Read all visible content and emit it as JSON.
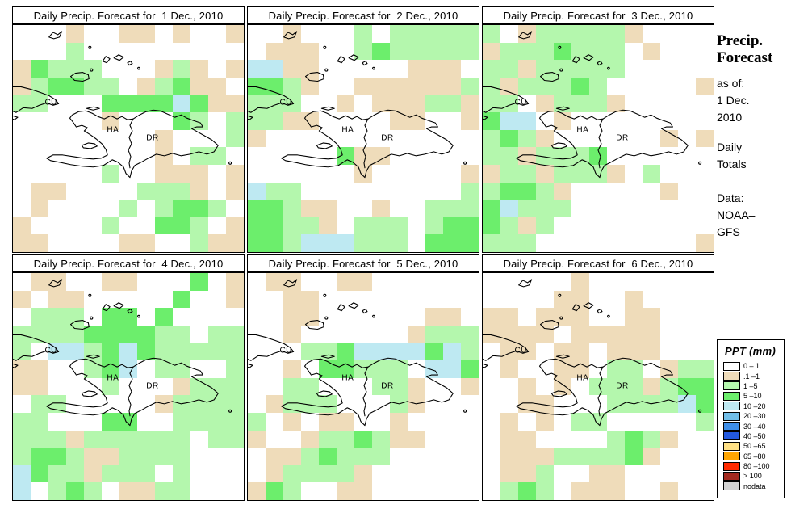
{
  "panels": [
    {
      "title": "Daily Precip. Forecast for  1 Dec., 2010",
      "grid": [
        "...t..tt.t..t",
        "...g.........",
        "tGggg...tgt.t",
        "tgGGgg.tgGtt.",
        "gg...GGGGcGtt",
        ".....t...Gg.g",
        "........t...g",
        "........t.gg.",
        ".....g..ttt.t",
        ".tt....gggt.t",
        ".t....g.gGGg.",
        "t....g..GGg.t",
        "tt....tt..gtt"
      ]
    },
    {
      "title": "Daily Precip. Forecast for  2 Dec., 2010",
      "grid": [
        "..t...g.ggggg",
        ".ttt..gGggggg",
        "cctt.....ttt.",
        "GGgt..ttttttg",
        "ggg..t.tttggt",
        "ggtt....tt..t",
        "t............",
        ".....Gtt.....",
        "......t.....t",
        "cgg.........g",
        "GGgtt..t..ggg",
        "GGggt.ggg.gGG",
        "GGgcccggg.GGG"
      ]
    },
    {
      "title": "Daily Precip. Forecast for  3 Dec., 2010",
      "grid": [
        "g.tgggggt....",
        "tgggGggg.t...",
        "ggtggggg.....",
        "gtgggGg.....t",
        "gg.tgggt.....",
        "Gcc.t........",
        "gGgt......t.t",
        "ggtgggG......",
        "tggtgggt.g...",
        "gGGgt.....t..",
        "Gcggg........",
        "Ggtg.........",
        "ggg.........t"
      ]
    },
    {
      "title": "Daily Precip. Forecast for  4 Dec., 2010",
      "grid": [
        ".tt..tt...G.t",
        "t.tt.....G..t",
        ".ggg.GG.G....",
        "ggggGGGGgg.gg",
        "g.ccgGcGggggg",
        "tt..gGc.gg..g",
        "tt...g...tggg",
        ".gg.....tgggg",
        "gg...GG..gggg",
        "gggtgggggg.gg",
        "gGGgttgggg...",
        "cGggtggg.g...",
        "c.gGg.ttgg..."
      ]
    },
    {
      "title": "Daily Precip. Forecast for  5 Dec., 2010",
      "grid": [
        ".tt..tt......",
        "..tt.........",
        "..tt......tt.",
        "..t......tggg",
        "...ggGccccGcg",
        "..t.GGggg.ccG",
        "..gg...ggt..t",
        ".tggg...gt...",
        "g.t.tt..t....",
        "t..tggGgtt...",
        ".ttgGggg.....",
        ".tggggt......",
        "tGg..tt......"
      ]
    },
    {
      "title": "Daily Precip. Forecast for  6 Dec., 2010",
      "grid": [
        ".....t.......",
        "....tt..t....",
        "tt.ttt..tt...",
        "tttt.ttttt...",
        ".tt.tt.ttt...",
        ".t..tt.gg.tgg",
        "..t.t.gggtgGG",
        "..tt...ggggcG",
        ".t.t.gg.....g",
        ".tt....gGgt..",
        ".tttggggGt...",
        ".ttg..tt.....",
        ".gGg.ttt..t.."
      ]
    }
  ],
  "map_labels": {
    "cuba": "CU",
    "haiti": "HA",
    "dominican_republic": "DR"
  },
  "palette": {
    ".": "#FFFFFF",
    "t": "#EFDCBA",
    "g": "#B4F7AD",
    "G": "#6CEE6C",
    "c": "#BEE9F2",
    "C": "#72BEE8"
  },
  "sidebar": {
    "heading_line1": "Precip.",
    "heading_line2": "Forecast",
    "as_of_label": "as of:",
    "date_line1": "1 Dec.",
    "date_line2": "2010",
    "totals_line1": "Daily",
    "totals_line2": "Totals",
    "data_label": "Data:",
    "source_line1": "NOAA–",
    "source_line2": "GFS"
  },
  "legend": {
    "title": "PPT (mm)",
    "entries": [
      {
        "label": "0 –.1",
        "color": "#FFFFFF"
      },
      {
        "label": ".1 –1",
        "color": "#EFDCBA"
      },
      {
        "label": "1 –5",
        "color": "#B4F7AD"
      },
      {
        "label": "5 –10",
        "color": "#6CEE6C"
      },
      {
        "label": "10 –20",
        "color": "#BEE9F2"
      },
      {
        "label": "20 –30",
        "color": "#72BEE8"
      },
      {
        "label": "30 –40",
        "color": "#3E8EE8"
      },
      {
        "label": "40 –50",
        "color": "#2359DE"
      },
      {
        "label": "50 –65",
        "color": "#FFE085"
      },
      {
        "label": "65 –80",
        "color": "#FFA502"
      },
      {
        "label": "80 –100",
        "color": "#FF2B01"
      },
      {
        "label": "> 100",
        "color": "#A3291F"
      },
      {
        "label": "nodata",
        "color": "#D3D3D3"
      }
    ]
  }
}
